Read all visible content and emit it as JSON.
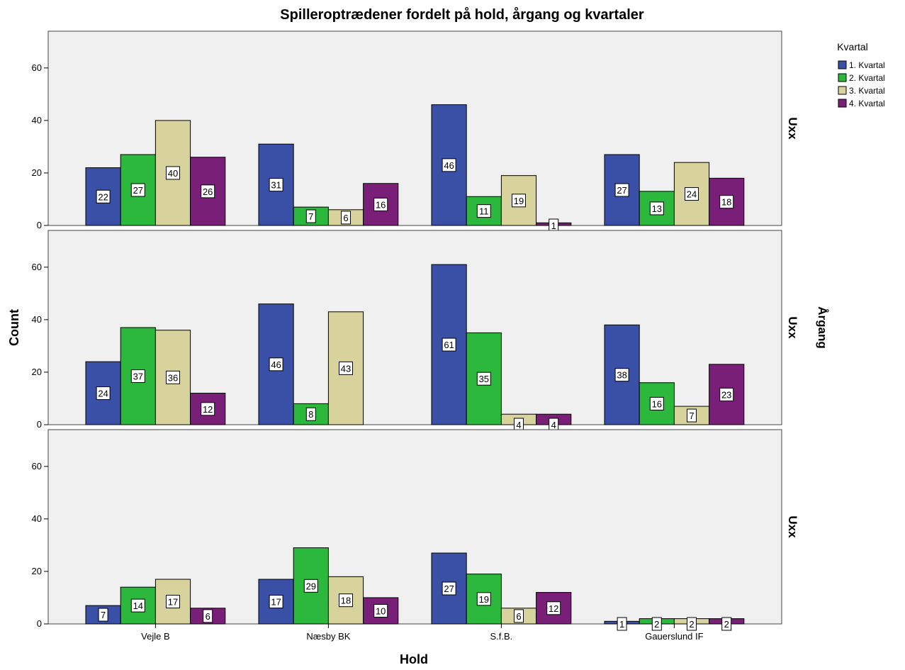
{
  "chart_data": {
    "type": "bar",
    "title": "Spilleroptrædener fordelt på hold, årgang og kvartaler",
    "xlabel": "Hold",
    "ylabel": "Count",
    "ylim": [
      0,
      74
    ],
    "yticks": [
      0,
      20,
      40,
      60
    ],
    "categories": [
      "Vejle B",
      "Næsby BK",
      "S.f.B.",
      "Gauerslund IF"
    ],
    "row_group_title": "Årgang",
    "legend": {
      "title": "Kvartal",
      "position": "top-right",
      "items": [
        {
          "name": "1. Kvartal",
          "color": "#3a4fa6"
        },
        {
          "name": "2. Kvartal",
          "color": "#2bb83c"
        },
        {
          "name": "3. Kvartal",
          "color": "#d8d29c"
        },
        {
          "name": "4. Kvartal",
          "color": "#7a1f78"
        }
      ]
    },
    "panels": [
      {
        "label": "Uxx",
        "series": [
          {
            "name": "1. Kvartal",
            "values": [
              22,
              31,
              46,
              27
            ]
          },
          {
            "name": "2. Kvartal",
            "values": [
              27,
              7,
              11,
              13
            ]
          },
          {
            "name": "3. Kvartal",
            "values": [
              40,
              6,
              19,
              24
            ]
          },
          {
            "name": "4. Kvartal",
            "values": [
              26,
              16,
              1,
              18
            ]
          }
        ]
      },
      {
        "label": "Uxx",
        "series": [
          {
            "name": "1. Kvartal",
            "values": [
              24,
              46,
              61,
              38
            ]
          },
          {
            "name": "2. Kvartal",
            "values": [
              37,
              8,
              35,
              16
            ]
          },
          {
            "name": "3. Kvartal",
            "values": [
              36,
              43,
              4,
              7
            ]
          },
          {
            "name": "4. Kvartal",
            "values": [
              12,
              null,
              4,
              23
            ]
          }
        ]
      },
      {
        "label": "Uxx",
        "series": [
          {
            "name": "1. Kvartal",
            "values": [
              7,
              17,
              27,
              1
            ]
          },
          {
            "name": "2. Kvartal",
            "values": [
              14,
              29,
              19,
              2
            ]
          },
          {
            "name": "3. Kvartal",
            "values": [
              17,
              18,
              6,
              2
            ]
          },
          {
            "name": "4. Kvartal",
            "values": [
              6,
              10,
              12,
              2
            ]
          }
        ]
      }
    ],
    "grid": false,
    "panel_background": "#f0f0f0",
    "bar_border": "#000000"
  }
}
